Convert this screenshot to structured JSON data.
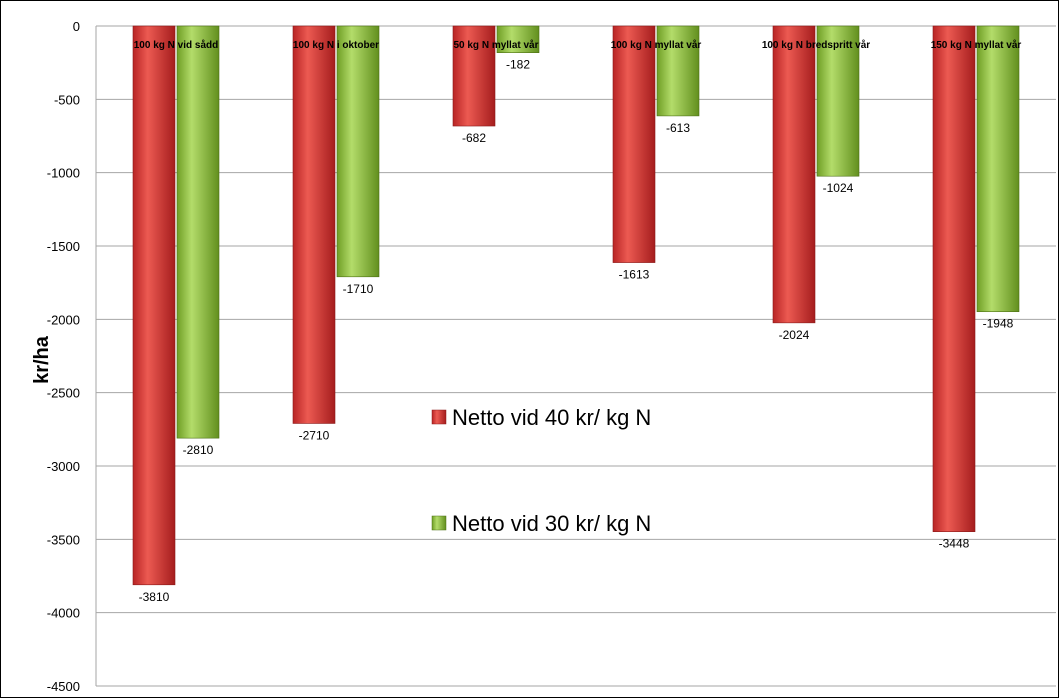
{
  "chart_data": {
    "type": "bar",
    "title": "",
    "xlabel": "",
    "ylabel": "kr/ha",
    "ylim": [
      -4500,
      0
    ],
    "yticks": [
      0,
      -500,
      -1000,
      -1500,
      -2000,
      -2500,
      -3000,
      -3500,
      -4000,
      -4500
    ],
    "grid": true,
    "legend_position": "inside-center",
    "categories": [
      "100 kg N vid sådd",
      "100 kg N i oktober",
      "50 kg N myllat vår",
      "100 kg N myllat vår",
      "100 kg N bredspritt vår",
      "150 kg N myllat vår"
    ],
    "series": [
      {
        "name": "Netto vid 40 kr/ kg N",
        "color": "#d93a3a",
        "values": [
          -3810,
          -2710,
          -682,
          -1613,
          -2024,
          -3448
        ]
      },
      {
        "name": "Netto vid 30 kr/ kg N",
        "color": "#8cc63f",
        "values": [
          -2810,
          -1710,
          -182,
          -613,
          -1024,
          -1948
        ]
      }
    ]
  }
}
